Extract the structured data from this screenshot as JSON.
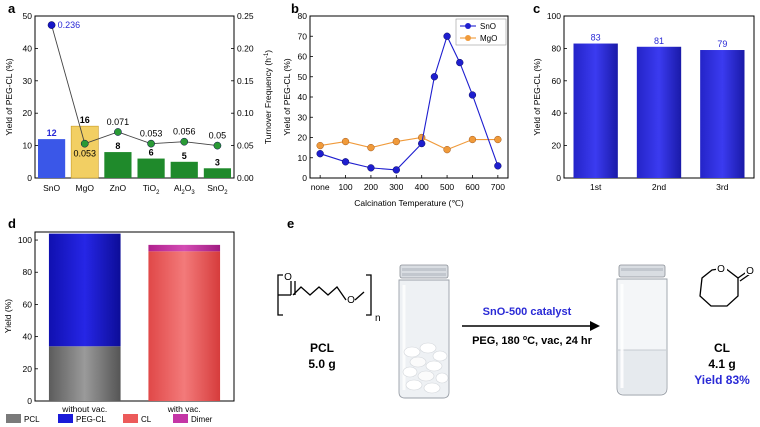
{
  "chart_data": [
    {
      "panel": "a",
      "type": "bar",
      "categories": [
        "SnO",
        "MgO",
        "ZnO",
        "TiO2",
        "Al2O3",
        "SnO2"
      ],
      "category_labels": [
        {
          "base": "SnO",
          "sub": ""
        },
        {
          "base": "MgO",
          "sub": ""
        },
        {
          "base": "ZnO",
          "sub": ""
        },
        {
          "base": "TiO",
          "sub": "2"
        },
        {
          "base": "Al",
          "sub": "2",
          "base2": "O",
          "sub2": "3"
        },
        {
          "base": "SnO",
          "sub": "2"
        }
      ],
      "values": [
        12,
        16,
        8,
        6,
        5,
        3
      ],
      "bar_labels": [
        "12",
        "16",
        "8",
        "6",
        "5",
        "3"
      ],
      "bar_colors": [
        "#3a57e8",
        "#f2cf63",
        "#1f8a2b",
        "#1f8a2b",
        "#1f8a2b",
        "#1f8a2b"
      ],
      "ylabel": "Yield of PEG-CL (%)",
      "ylim": [
        0,
        50
      ],
      "yticks": [
        "0",
        "10",
        "20",
        "30",
        "40",
        "50"
      ],
      "secondary": {
        "ylabel": "Turnover Frequency (h",
        "ylabel_sup": "-1",
        "ylabel_end": ")",
        "ylim": [
          0,
          0.25
        ],
        "yticks": [
          "0.00",
          "0.05",
          "0.10",
          "0.15",
          "0.20",
          "0.25"
        ],
        "values": [
          0.236,
          0.053,
          0.071,
          0.053,
          0.056,
          0.05
        ],
        "labels": [
          "0.236",
          "0.053",
          "0.071",
          "0.053",
          "0.056",
          "0.05"
        ],
        "marker_colors": [
          "#1515c8",
          "#2a9a35",
          "#2a9a35",
          "#2a9a35",
          "#2a9a35",
          "#2a9a35"
        ]
      }
    },
    {
      "panel": "b",
      "type": "line",
      "x": [
        "none",
        "100",
        "200",
        "300",
        "400",
        "450",
        "500",
        "550",
        "600",
        "700"
      ],
      "xticks": [
        "none",
        "100",
        "200",
        "300",
        "400",
        "500",
        "600",
        "700"
      ],
      "xlabel": "Calcination Temperature (℃)",
      "ylabel": "Yield of PEG-CL (%)",
      "ylim": [
        0,
        80
      ],
      "yticks": [
        "0",
        "10",
        "20",
        "30",
        "40",
        "50",
        "60",
        "70",
        "80"
      ],
      "series": [
        {
          "name": "SnO",
          "color": "#1e1ecf",
          "x": [
            0,
            100,
            200,
            300,
            400,
            450,
            500,
            550,
            600,
            700
          ],
          "values": [
            12,
            8,
            5,
            4,
            17,
            50,
            70,
            57,
            41,
            6
          ]
        },
        {
          "name": "MgO",
          "color": "#f09a3a",
          "x": [
            0,
            100,
            200,
            300,
            400,
            500,
            600,
            700
          ],
          "values": [
            16,
            18,
            15,
            18,
            20,
            14,
            19,
            19
          ]
        }
      ],
      "legend_position": "top-right"
    },
    {
      "panel": "c",
      "type": "bar",
      "categories": [
        "1st",
        "2nd",
        "3rd"
      ],
      "values": [
        83,
        81,
        79
      ],
      "bar_labels": [
        "83",
        "81",
        "79"
      ],
      "ylabel": "Yield of PEG-CL (%)",
      "ylim": [
        0,
        100
      ],
      "yticks": [
        "0",
        "20",
        "40",
        "60",
        "80",
        "100"
      ]
    },
    {
      "panel": "d",
      "type": "bar",
      "stacked": true,
      "categories": [
        "without vac.",
        "with vac."
      ],
      "ylabel": "Yield (%)",
      "ylim": [
        0,
        105
      ],
      "yticks": [
        "0",
        "20",
        "40",
        "60",
        "80",
        "100"
      ],
      "series": [
        {
          "name": "PCL",
          "values": [
            34,
            0
          ]
        },
        {
          "name": "PEG-CL",
          "values": [
            70,
            0
          ]
        },
        {
          "name": "CL",
          "values": [
            0,
            93
          ]
        },
        {
          "name": "Dimer",
          "values": [
            0,
            4
          ]
        }
      ],
      "legend": [
        "PCL",
        "PEG-CL",
        "CL",
        "Dimer"
      ],
      "legend_position": "bottom"
    }
  ],
  "panel_letters": [
    "a",
    "b",
    "c",
    "d",
    "e"
  ],
  "scheme": {
    "reactant_name": "PCL",
    "reactant_amount": "5.0 g",
    "repeat_unit": "n",
    "catalyst": "SnO-500 catalyst",
    "conditions_prefix": "PEG, 180 ",
    "conditions_sup": "o",
    "conditions_suffix": "C, vac, 24 hr",
    "product_name": "CL",
    "product_amount": "4.1 g",
    "product_yield": "Yield 83%"
  }
}
